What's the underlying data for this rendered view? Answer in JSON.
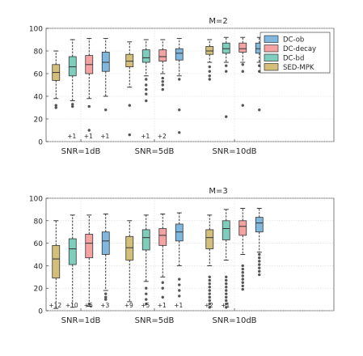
{
  "legend": {
    "position": "top-right",
    "entries": [
      {
        "name": "DC-ob",
        "color": "#7fb7df"
      },
      {
        "name": "DC-decay",
        "color": "#f4a3a3"
      },
      {
        "name": "DC-bd",
        "color": "#7ecdbd"
      },
      {
        "name": "SED-MPK",
        "color": "#d4bf7a"
      }
    ]
  },
  "chart_data": [
    {
      "type": "box",
      "title": "M=2",
      "xlabel": "",
      "ylabel": "",
      "ylim": [
        0,
        100
      ],
      "yticks": [
        0,
        20,
        40,
        60,
        80,
        100
      ],
      "grid": true,
      "categories": [
        "SNR=1dB",
        "SNR=5dB",
        "SNR=10dB"
      ],
      "series_order": [
        "SED-MPK",
        "DC-bd",
        "DC-decay",
        "DC-ob"
      ],
      "groups": [
        {
          "category": "SNR=1dB",
          "boxes": [
            {
              "series": "SED-MPK",
              "whisker_low": 38,
              "q1": 54,
              "median": 61,
              "q3": 68,
              "whisker_high": 80,
              "outliers": [
                30,
                32
              ],
              "annotation": ""
            },
            {
              "series": "DC-bd",
              "whisker_low": 36,
              "q1": 58,
              "median": 66,
              "q3": 75,
              "whisker_high": 90,
              "outliers": [
                31,
                33
              ],
              "annotation": "+1"
            },
            {
              "series": "DC-decay",
              "whisker_low": 38,
              "q1": 60,
              "median": 68,
              "q3": 76,
              "whisker_high": 91,
              "outliers": [
                10,
                31
              ],
              "annotation": "+1"
            },
            {
              "series": "DC-ob",
              "whisker_low": 40,
              "q1": 62,
              "median": 70,
              "q3": 79,
              "whisker_high": 91,
              "outliers": [
                28
              ],
              "annotation": "+1"
            }
          ]
        },
        {
          "category": "SNR=5dB",
          "boxes": [
            {
              "series": "SED-MPK",
              "whisker_low": 48,
              "q1": 66,
              "median": 71,
              "q3": 77,
              "whisker_high": 88,
              "outliers": [
                32,
                6
              ],
              "annotation": ""
            },
            {
              "series": "DC-bd",
              "whisker_low": 58,
              "q1": 70,
              "median": 74,
              "q3": 81,
              "whisker_high": 90,
              "outliers": [
                55,
                50,
                46,
                42,
                36
              ],
              "annotation": "+1"
            },
            {
              "series": "DC-decay",
              "whisker_low": 60,
              "q1": 71,
              "median": 75,
              "q3": 81,
              "whisker_high": 90,
              "outliers": [
                56,
                53,
                50,
                46
              ],
              "annotation": "+2"
            },
            {
              "series": "DC-ob",
              "whisker_low": 58,
              "q1": 72,
              "median": 78,
              "q3": 82,
              "whisker_high": 91,
              "outliers": [
                55,
                28,
                8
              ],
              "annotation": ""
            }
          ]
        },
        {
          "category": "SNR=10dB",
          "boxes": [
            {
              "series": "SED-MPK",
              "whisker_low": 70,
              "q1": 77,
              "median": 80,
              "q3": 84,
              "whisker_high": 90,
              "outliers": [
                66,
                62,
                58,
                55
              ],
              "annotation": ""
            },
            {
              "series": "DC-bd",
              "whisker_low": 70,
              "q1": 78,
              "median": 82,
              "q3": 87,
              "whisker_high": 92,
              "outliers": [
                67,
                62,
                22
              ],
              "annotation": ""
            },
            {
              "series": "DC-decay",
              "whisker_low": 70,
              "q1": 79,
              "median": 82,
              "q3": 87,
              "whisker_high": 92,
              "outliers": [
                68,
                62,
                32
              ],
              "annotation": ""
            },
            {
              "series": "DC-ob",
              "whisker_low": 70,
              "q1": 78,
              "median": 82,
              "q3": 87,
              "whisker_high": 92,
              "outliers": [
                67,
                62,
                28
              ],
              "annotation": ""
            }
          ]
        }
      ]
    },
    {
      "type": "box",
      "title": "M=3",
      "xlabel": "",
      "ylabel": "",
      "ylim": [
        0,
        100
      ],
      "yticks": [
        0,
        20,
        40,
        60,
        80,
        100
      ],
      "grid": true,
      "categories": [
        "SNR=1dB",
        "SNR=5dB",
        "SNR=10dB"
      ],
      "series_order": [
        "SED-MPK",
        "DC-bd",
        "DC-decay",
        "DC-ob"
      ],
      "groups": [
        {
          "category": "SNR=1dB",
          "boxes": [
            {
              "series": "SED-MPK",
              "whisker_low": 2,
              "q1": 29,
              "median": 46,
              "q3": 58,
              "whisker_high": 80,
              "outliers": [],
              "annotation": "+12"
            },
            {
              "series": "DC-bd",
              "whisker_low": 3,
              "q1": 41,
              "median": 55,
              "q3": 64,
              "whisker_high": 85,
              "outliers": [],
              "annotation": "+10"
            },
            {
              "series": "DC-decay",
              "whisker_low": 4,
              "q1": 47,
              "median": 60,
              "q3": 68,
              "whisker_high": 85,
              "outliers": [
                6
              ],
              "annotation": "+6"
            },
            {
              "series": "DC-ob",
              "whisker_low": 18,
              "q1": 50,
              "median": 62,
              "q3": 70,
              "whisker_high": 86,
              "outliers": [
                15,
                12,
                10
              ],
              "annotation": "+3"
            }
          ]
        },
        {
          "category": "SNR=5dB",
          "boxes": [
            {
              "series": "SED-MPK",
              "whisker_low": 8,
              "q1": 45,
              "median": 56,
              "q3": 66,
              "whisker_high": 80,
              "outliers": [],
              "annotation": "+9"
            },
            {
              "series": "DC-bd",
              "whisker_low": 26,
              "q1": 54,
              "median": 65,
              "q3": 72,
              "whisker_high": 85,
              "outliers": [
                20,
                15,
                10,
                6
              ],
              "annotation": "+5"
            },
            {
              "series": "DC-decay",
              "whisker_low": 30,
              "q1": 58,
              "median": 67,
              "q3": 73,
              "whisker_high": 86,
              "outliers": [
                25,
                20,
                12
              ],
              "annotation": "+1"
            },
            {
              "series": "DC-ob",
              "whisker_low": 40,
              "q1": 62,
              "median": 70,
              "q3": 77,
              "whisker_high": 87,
              "outliers": [
                28,
                23,
                18,
                13
              ],
              "annotation": "+1"
            }
          ]
        },
        {
          "category": "SNR=10dB",
          "boxes": [
            {
              "series": "SED-MPK",
              "whisker_low": 40,
              "q1": 55,
              "median": 65,
              "q3": 72,
              "whisker_high": 85,
              "outliers": [
                30,
                27,
                24,
                21,
                18,
                15,
                12,
                9,
                6,
                3
              ],
              "annotation": "+2"
            },
            {
              "series": "DC-bd",
              "whisker_low": 45,
              "q1": 63,
              "median": 73,
              "q3": 80,
              "whisker_high": 90,
              "outliers": [
                30,
                27,
                24,
                21,
                18,
                15,
                12,
                9,
                6,
                3
              ],
              "annotation": "+1"
            },
            {
              "series": "DC-decay",
              "whisker_low": 50,
              "q1": 67,
              "median": 75,
              "q3": 80,
              "whisker_high": 91,
              "outliers": [
                40,
                37,
                34,
                31,
                28,
                25,
                22,
                19
              ],
              "annotation": ""
            },
            {
              "series": "DC-ob",
              "whisker_low": 52,
              "q1": 70,
              "median": 78,
              "q3": 83,
              "whisker_high": 91,
              "outliers": [
                50,
                47,
                44,
                41,
                38,
                35,
                32
              ],
              "annotation": ""
            }
          ]
        }
      ]
    }
  ]
}
